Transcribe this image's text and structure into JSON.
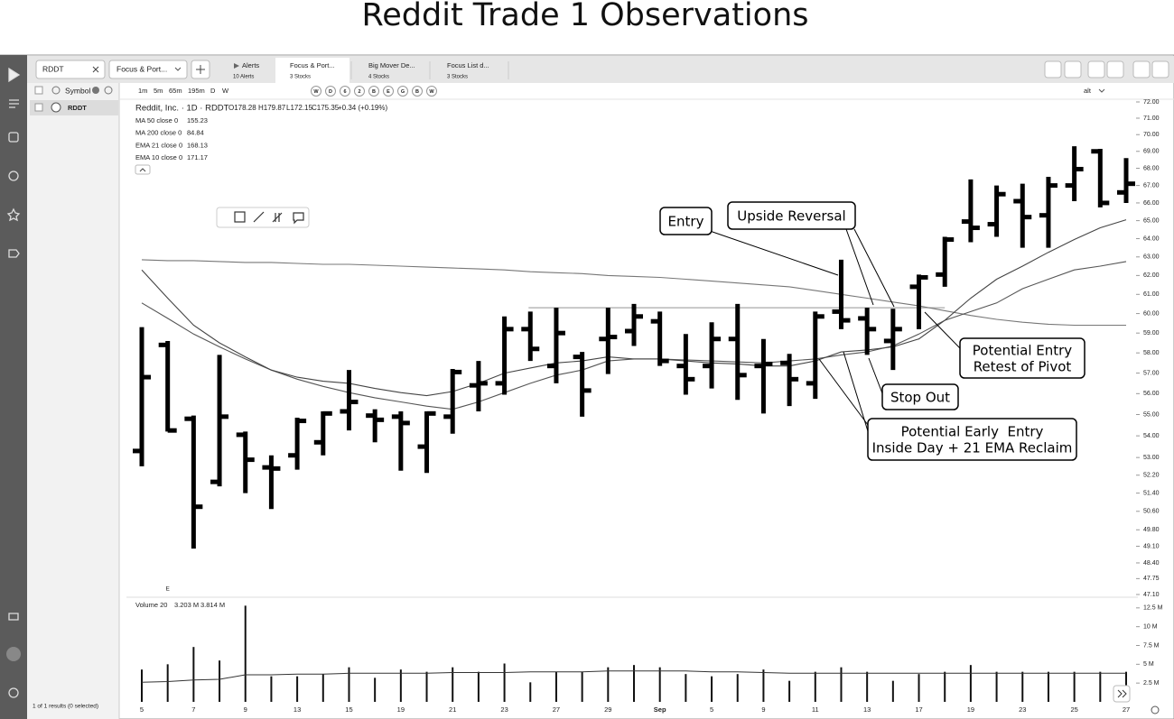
{
  "page_title": "Reddit Trade 1 Observations",
  "tabs": {
    "symbol": "RDDT",
    "list": "Focus & Port...",
    "alerts": {
      "title": "Alerts",
      "sub": "10 Alerts"
    },
    "lists": [
      {
        "title": "Focus & Port...",
        "sub": "3 Stocks"
      },
      {
        "title": "Big Mover De...",
        "sub": "4 Stocks"
      },
      {
        "title": "Focus List d...",
        "sub": "3 Stocks"
      }
    ]
  },
  "toolbar": {
    "intervals": [
      "1m",
      "5m",
      "65m",
      "195m",
      "D",
      "W"
    ],
    "buttons": [
      "W",
      "D",
      "6",
      "2",
      "B",
      "E",
      "G",
      "B",
      "W"
    ],
    "alt": "alt"
  },
  "watchlist": {
    "header": "Symbol",
    "rows": [
      "RDDT"
    ],
    "footer": "1 of 1 results (0 selected)"
  },
  "chart_data": {
    "type": "ohlc",
    "title": "Reddit, Inc. · 1D · RDDT",
    "quote": [
      "O178.28",
      "H179.87",
      "L172.15",
      "C175.35",
      "+0.34 (+0.19%)"
    ],
    "color": "#000000",
    "log": true,
    "categories": [
      "5",
      null,
      "7",
      null,
      "9",
      null,
      "13",
      null,
      "15",
      null,
      "19",
      null,
      "21",
      null,
      "23",
      null,
      "27",
      null,
      "29",
      null,
      "Sep",
      null,
      "5",
      null,
      "9",
      null,
      "11",
      null,
      "13",
      null,
      "17",
      null,
      "19",
      null,
      "23",
      null,
      "25",
      null,
      "27"
    ],
    "open": [
      53.3,
      58.4,
      54.8,
      51.9,
      54.05,
      52.55,
      53.1,
      53.7,
      55.15,
      54.95,
      54.9,
      53.5,
      54.9,
      56.4,
      56.5,
      59.2,
      57.35,
      57.8,
      58.7,
      59.1,
      59.6,
      57.35,
      57.35,
      58.7,
      57.35,
      57.5,
      56.5,
      60.1,
      59.75,
      58.6,
      61.4,
      62.05,
      64.95,
      64.8,
      66.1,
      65.3,
      67.0,
      69.0,
      66.6
    ],
    "high": [
      59.3,
      58.6,
      54.95,
      57.9,
      54.2,
      53.1,
      54.85,
      55.15,
      57.15,
      55.25,
      55.15,
      55.15,
      57.2,
      57.6,
      59.85,
      60.1,
      60.3,
      58.05,
      60.3,
      60.5,
      60.1,
      58.95,
      59.55,
      60.5,
      58.7,
      57.95,
      60.1,
      62.85,
      60.3,
      60.25,
      62.05,
      64.1,
      67.35,
      67.0,
      67.1,
      67.5,
      69.3,
      69.15,
      68.6
    ],
    "low": [
      52.6,
      54.2,
      49.0,
      51.7,
      51.4,
      50.7,
      52.45,
      53.1,
      54.25,
      53.7,
      52.4,
      52.3,
      54.1,
      55.15,
      55.95,
      57.6,
      56.5,
      54.9,
      56.95,
      58.35,
      57.35,
      55.95,
      56.25,
      55.7,
      55.05,
      55.4,
      55.75,
      59.2,
      57.9,
      57.15,
      59.2,
      61.4,
      63.8,
      64.1,
      63.5,
      63.5,
      66.1,
      65.75,
      66.0
    ],
    "close": [
      56.8,
      54.25,
      50.8,
      54.9,
      52.9,
      52.5,
      54.7,
      55.05,
      55.6,
      54.75,
      54.6,
      55.05,
      57.05,
      56.5,
      59.2,
      58.2,
      59.0,
      56.15,
      58.8,
      59.85,
      57.6,
      56.7,
      58.7,
      56.9,
      57.45,
      56.7,
      59.85,
      59.65,
      59.2,
      59.2,
      61.9,
      63.95,
      64.6,
      66.5,
      65.2,
      67.0,
      67.95,
      66.0,
      67.1
    ],
    "ylim": [
      47.1,
      72
    ],
    "yticks": [
      {
        "value": 72,
        "label": "72.00"
      },
      {
        "value": 71,
        "label": "71.00"
      },
      {
        "value": 70,
        "label": "70.00"
      },
      {
        "value": 69,
        "label": "69.00"
      },
      {
        "value": 68,
        "label": "68.00"
      },
      {
        "value": 67,
        "label": "67.00"
      },
      {
        "value": 66,
        "label": "66.00"
      },
      {
        "value": 65,
        "label": "65.00"
      },
      {
        "value": 64,
        "label": "64.00"
      },
      {
        "value": 63,
        "label": "63.00"
      },
      {
        "value": 62,
        "label": "62.00"
      },
      {
        "value": 61,
        "label": "61.00"
      },
      {
        "value": 60,
        "label": "60.00"
      },
      {
        "value": 59,
        "label": "59.00"
      },
      {
        "value": 58,
        "label": "58.00"
      },
      {
        "value": 57,
        "label": "57.00"
      },
      {
        "value": 56,
        "label": "56.00"
      },
      {
        "value": 55,
        "label": "55.00"
      },
      {
        "value": 54,
        "label": "54.00"
      },
      {
        "value": 53,
        "label": "53.00"
      },
      {
        "value": 52.2,
        "label": "52.20"
      },
      {
        "value": 51.4,
        "label": "51.40"
      },
      {
        "value": 50.6,
        "label": "50.60"
      },
      {
        "value": 49.8,
        "label": "49.80"
      },
      {
        "value": 49.1,
        "label": "49.10"
      },
      {
        "value": 48.4,
        "label": "48.40"
      },
      {
        "value": 47.75,
        "label": "47.75"
      },
      {
        "value": 47.1,
        "label": "47.10"
      }
    ],
    "hline": 60.3,
    "earnings": "E",
    "studies": [
      {
        "name": "MA 50 close 0",
        "value": 155.23,
        "color": "#777777",
        "values": [
          62.85,
          62.8,
          62.8,
          62.75,
          62.7,
          62.7,
          62.65,
          62.6,
          62.6,
          62.55,
          62.5,
          62.45,
          62.4,
          62.35,
          62.3,
          62.2,
          62.15,
          62.1,
          62.0,
          61.95,
          61.9,
          61.8,
          61.7,
          61.6,
          61.5,
          61.4,
          61.2,
          61.0,
          60.8,
          60.6,
          60.4,
          60.15,
          59.9,
          59.7,
          59.55,
          59.45,
          59.4,
          59.4,
          59.4
        ]
      },
      {
        "name": "MA 200 close 0",
        "value": 84.84
      },
      {
        "name": "EMA 21 close 0",
        "value": 168.13,
        "color": "#555555",
        "values": [
          60.55,
          59.75,
          58.95,
          58.3,
          57.7,
          57.15,
          56.7,
          56.35,
          56.05,
          55.8,
          55.6,
          55.4,
          55.25,
          55.6,
          56.05,
          56.5,
          56.9,
          57.15,
          57.6,
          57.7,
          57.7,
          57.65,
          57.6,
          57.55,
          57.5,
          57.6,
          57.7,
          57.9,
          58.05,
          58.35,
          58.95,
          59.65,
          60.1,
          60.55,
          61.3,
          61.8,
          62.3,
          62.5,
          62.75
        ]
      },
      {
        "name": "EMA 10 close 0",
        "value": 171.17,
        "color": "#444444",
        "values": [
          62.3,
          60.8,
          59.4,
          58.5,
          57.8,
          57.15,
          56.8,
          56.6,
          56.5,
          56.25,
          56.05,
          55.9,
          56.1,
          56.5,
          57.0,
          57.25,
          57.5,
          57.6,
          57.8,
          57.7,
          57.7,
          57.6,
          57.5,
          57.45,
          57.35,
          57.35,
          57.6,
          58.05,
          58.15,
          58.3,
          58.7,
          59.65,
          60.8,
          61.8,
          62.5,
          63.25,
          63.95,
          64.6,
          65.05
        ]
      }
    ],
    "annotations": [
      {
        "lines": [
          "Entry"
        ]
      },
      {
        "lines": [
          "Upside Reversal"
        ]
      },
      {
        "lines": [
          "Potential Entry",
          "Retest of Pivot"
        ]
      },
      {
        "lines": [
          "Stop Out"
        ]
      },
      {
        "lines": [
          "Potential Early  Entry",
          "Inside Day + 21 EMA Reclaim"
        ]
      }
    ],
    "volume": {
      "label": "Volume 20",
      "legend_values": [
        "3.203 M",
        "3.814 M"
      ],
      "color": "#111111",
      "values": [
        4.3,
        5.0,
        7.3,
        5.5,
        12.8,
        3.4,
        3.4,
        3.7,
        4.6,
        3.2,
        4.3,
        4.0,
        4.6,
        4.0,
        5.1,
        2.6,
        4.0,
        4.0,
        4.6,
        4.9,
        4.6,
        3.7,
        3.4,
        3.7,
        4.3,
        2.8,
        4.0,
        4.6,
        4.0,
        2.8,
        3.7,
        4.0,
        4.9,
        4.0,
        4.0,
        4.0,
        4.0,
        4.0,
        4.0
      ],
      "average": [
        2.6,
        2.7,
        2.9,
        3.0,
        3.6,
        3.6,
        3.7,
        3.7,
        3.8,
        3.8,
        3.8,
        3.8,
        3.9,
        3.9,
        3.9,
        4.0,
        4.0,
        4.0,
        4.1,
        4.1,
        4.1,
        4.1,
        4.0,
        4.0,
        3.9,
        3.8,
        3.8,
        3.8,
        3.8,
        3.8,
        3.8,
        3.8,
        3.8,
        3.8,
        3.8,
        3.8,
        3.8,
        3.8,
        3.8
      ],
      "ylim": [
        0,
        13.8
      ],
      "yticks": [
        {
          "value": 12.5,
          "label": "12.5 M"
        },
        {
          "value": 10,
          "label": "10 M"
        },
        {
          "value": 7.5,
          "label": "7.5 M"
        },
        {
          "value": 5,
          "label": "5 M"
        },
        {
          "value": 2.5,
          "label": "2.5 M"
        }
      ]
    }
  }
}
